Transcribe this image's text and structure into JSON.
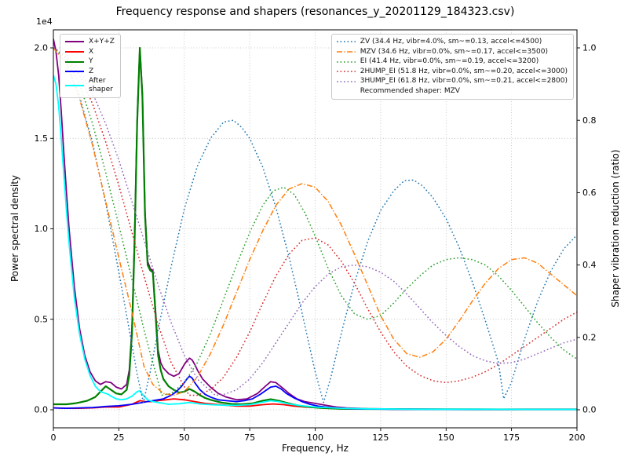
{
  "title": "Frequency response and shapers (resonances_y_20201129_184323.csv)",
  "axis_offset_label": "1e4",
  "x_axis": {
    "label": "Frequency, Hz",
    "ticks": [
      0,
      25,
      50,
      75,
      100,
      125,
      150,
      175,
      200
    ]
  },
  "y_left_axis": {
    "label": "Power spectral density",
    "ticks": [
      "0.0",
      "0.5",
      "1.0",
      "1.5",
      "2.0"
    ],
    "tick_values": [
      0,
      0.5,
      1.0,
      1.5,
      2.0
    ],
    "multiplier": "1e4"
  },
  "y_right_axis": {
    "label": "Shaper vibration reduction (ratio)",
    "ticks": [
      "0.0",
      "0.2",
      "0.4",
      "0.6",
      "0.8",
      "1.0"
    ],
    "tick_values": [
      0,
      0.2,
      0.4,
      0.6,
      0.8,
      1.0
    ]
  },
  "legend_psd": {
    "items": [
      {
        "id": "xyz",
        "label": "X+Y+Z",
        "color": "#800080",
        "linestyle": "solid",
        "width": 2
      },
      {
        "id": "x",
        "label": "X",
        "color": "#ff0000",
        "linestyle": "solid",
        "width": 2
      },
      {
        "id": "y",
        "label": "Y",
        "color": "#008000",
        "linestyle": "solid",
        "width": 2
      },
      {
        "id": "z",
        "label": "Z",
        "color": "#0000ff",
        "linestyle": "solid",
        "width": 2
      },
      {
        "id": "after",
        "label": "After\nshaper",
        "color": "#00ffff",
        "linestyle": "solid",
        "width": 2
      }
    ]
  },
  "legend_shapers": {
    "items": [
      {
        "id": "zv",
        "label": "ZV (34.4 Hz, vibr=4.0%, sm~=0.13, accel<=4500)",
        "color": "#1f77b4",
        "linestyle": "dotted",
        "width": 1.5
      },
      {
        "id": "mzv",
        "label": "MZV (34.6 Hz, vibr=0.0%, sm~=0.17, accel<=3500)",
        "color": "#ff7f0e",
        "linestyle": "dashdot",
        "width": 1.5
      },
      {
        "id": "ei",
        "label": "EI (41.4 Hz, vibr=0.0%, sm~=0.19, accel<=3200)",
        "color": "#2ca02c",
        "linestyle": "dotted",
        "width": 1.5
      },
      {
        "id": "2hump_ei",
        "label": "2HUMP_EI (51.8 Hz, vibr=0.0%, sm~=0.20, accel<=3000)",
        "color": "#d62728",
        "linestyle": "dotted",
        "width": 1.5
      },
      {
        "id": "3hump_ei",
        "label": "3HUMP_EI (61.8 Hz, vibr=0.0%, sm~=0.21, accel<=2800)",
        "color": "#9467bd",
        "linestyle": "dotted",
        "width": 1.5
      }
    ],
    "note": "Recommended shaper: MZV"
  },
  "chart_data": {
    "type": "line",
    "title": "Frequency response and shapers (resonances_y_20201129_184323.csv)",
    "xlabel": "Frequency, Hz",
    "ylabel_left": "Power spectral density (x1e4)",
    "ylabel_right": "Shaper vibration reduction (ratio)",
    "x_range": [
      0,
      200
    ],
    "y_left_range": [
      -0.1,
      2.1
    ],
    "y_right_range": [
      -0.05,
      1.05
    ],
    "grid": true,
    "recommended_shaper": "MZV",
    "series": [
      {
        "id": "xyz",
        "name": "X+Y+Z",
        "axis": "left",
        "color": "#800080",
        "linestyle": "solid",
        "width": 1.8,
        "x": [
          0,
          1,
          2,
          3,
          4,
          5,
          6,
          8,
          10,
          12,
          14,
          16,
          18,
          20,
          22,
          24,
          26,
          28,
          29,
          30,
          31,
          32,
          33,
          34,
          35,
          36,
          37,
          38,
          39,
          40,
          41,
          42,
          44,
          46,
          48,
          50,
          51,
          52,
          53,
          54,
          55,
          57,
          60,
          63,
          66,
          70,
          74,
          78,
          81,
          83,
          85,
          88,
          90,
          93,
          96,
          100,
          104,
          108,
          112,
          116,
          120,
          130,
          140,
          160,
          180,
          200
        ],
        "y": [
          2.05,
          1.98,
          1.85,
          1.65,
          1.42,
          1.2,
          1.0,
          0.68,
          0.45,
          0.3,
          0.21,
          0.16,
          0.14,
          0.155,
          0.15,
          0.125,
          0.115,
          0.14,
          0.22,
          0.45,
          0.95,
          1.6,
          2.0,
          1.75,
          1.1,
          0.82,
          0.78,
          0.77,
          0.55,
          0.33,
          0.26,
          0.23,
          0.2,
          0.185,
          0.2,
          0.25,
          0.27,
          0.285,
          0.275,
          0.25,
          0.22,
          0.17,
          0.125,
          0.09,
          0.07,
          0.055,
          0.06,
          0.09,
          0.13,
          0.155,
          0.15,
          0.115,
          0.09,
          0.06,
          0.045,
          0.035,
          0.025,
          0.015,
          0.01,
          0.008,
          0.006,
          0.004,
          0.003,
          0.003,
          0.002,
          0.002
        ]
      },
      {
        "id": "x",
        "name": "X",
        "axis": "left",
        "color": "#ff0000",
        "linestyle": "solid",
        "width": 1.8,
        "x": [
          0,
          5,
          10,
          15,
          20,
          25,
          30,
          33,
          35,
          38,
          40,
          43,
          46,
          50,
          54,
          58,
          62,
          66,
          70,
          75,
          80,
          84,
          88,
          92,
          96,
          100,
          110,
          120,
          140,
          160,
          180,
          200
        ],
        "y": [
          0.01,
          0.008,
          0.008,
          0.01,
          0.015,
          0.015,
          0.03,
          0.05,
          0.045,
          0.045,
          0.05,
          0.055,
          0.06,
          0.055,
          0.045,
          0.035,
          0.03,
          0.025,
          0.02,
          0.02,
          0.028,
          0.032,
          0.028,
          0.02,
          0.015,
          0.012,
          0.006,
          0.004,
          0.003,
          0.002,
          0.002,
          0.002
        ]
      },
      {
        "id": "y",
        "name": "Y",
        "axis": "left",
        "color": "#008000",
        "linestyle": "solid",
        "width": 2.2,
        "x": [
          0,
          2,
          5,
          8,
          10,
          13,
          16,
          18,
          20,
          22,
          24,
          26,
          28,
          29,
          30,
          31,
          32,
          33,
          34,
          35,
          36,
          37,
          38,
          39,
          40,
          41,
          42,
          44,
          46,
          48,
          50,
          52,
          54,
          56,
          58,
          60,
          64,
          68,
          72,
          76,
          80,
          83,
          86,
          90,
          94,
          98,
          102,
          106,
          110,
          120,
          140,
          160,
          180,
          200
        ],
        "y": [
          0.03,
          0.03,
          0.03,
          0.035,
          0.04,
          0.05,
          0.07,
          0.1,
          0.13,
          0.11,
          0.09,
          0.085,
          0.11,
          0.19,
          0.42,
          0.92,
          1.58,
          2.0,
          1.73,
          1.08,
          0.8,
          0.77,
          0.76,
          0.53,
          0.3,
          0.22,
          0.17,
          0.13,
          0.11,
          0.095,
          0.1,
          0.115,
          0.1,
          0.08,
          0.065,
          0.055,
          0.04,
          0.032,
          0.03,
          0.035,
          0.05,
          0.058,
          0.05,
          0.035,
          0.022,
          0.015,
          0.01,
          0.007,
          0.005,
          0.004,
          0.003,
          0.002,
          0.002,
          0.002
        ]
      },
      {
        "id": "z",
        "name": "Z",
        "axis": "left",
        "color": "#0000ff",
        "linestyle": "solid",
        "width": 1.8,
        "x": [
          0,
          5,
          10,
          15,
          20,
          25,
          30,
          34,
          38,
          42,
          45,
          47,
          49,
          50,
          51,
          52,
          53,
          54,
          56,
          58,
          60,
          63,
          66,
          70,
          73,
          76,
          79,
          81,
          83,
          85,
          87,
          89,
          92,
          95,
          98,
          101,
          104,
          108,
          112,
          116,
          120,
          130,
          140,
          160,
          180,
          200
        ],
        "y": [
          0.01,
          0.008,
          0.01,
          0.012,
          0.018,
          0.022,
          0.03,
          0.04,
          0.05,
          0.06,
          0.08,
          0.1,
          0.13,
          0.15,
          0.17,
          0.185,
          0.175,
          0.15,
          0.11,
          0.085,
          0.07,
          0.055,
          0.05,
          0.045,
          0.05,
          0.06,
          0.085,
          0.105,
          0.125,
          0.13,
          0.115,
          0.09,
          0.065,
          0.045,
          0.03,
          0.02,
          0.015,
          0.01,
          0.007,
          0.005,
          0.004,
          0.003,
          0.003,
          0.002,
          0.002,
          0.002
        ]
      },
      {
        "id": "after",
        "name": "After shaper",
        "axis": "left",
        "color": "#00ffff",
        "linestyle": "solid",
        "width": 1.8,
        "x": [
          0,
          1,
          2,
          3,
          4,
          5,
          6,
          8,
          10,
          12,
          14,
          16,
          18,
          19,
          20,
          21,
          22,
          24,
          26,
          28,
          30,
          32,
          33,
          34,
          36,
          38,
          40,
          44,
          48,
          52,
          56,
          60,
          65,
          70,
          75,
          80,
          83,
          86,
          90,
          95,
          100,
          110,
          120,
          140,
          160,
          180,
          200
        ],
        "y": [
          1.85,
          1.8,
          1.68,
          1.5,
          1.3,
          1.1,
          0.92,
          0.62,
          0.42,
          0.28,
          0.19,
          0.13,
          0.1,
          0.095,
          0.09,
          0.085,
          0.075,
          0.06,
          0.055,
          0.06,
          0.075,
          0.1,
          0.105,
          0.085,
          0.055,
          0.045,
          0.04,
          0.03,
          0.033,
          0.04,
          0.032,
          0.028,
          0.025,
          0.024,
          0.028,
          0.042,
          0.05,
          0.045,
          0.032,
          0.022,
          0.015,
          0.008,
          0.005,
          0.003,
          0.003,
          0.002,
          0.002
        ]
      },
      {
        "id": "zv",
        "name": "ZV",
        "axis": "right",
        "color": "#1f77b4",
        "linestyle": "dotted",
        "width": 1.5,
        "x": [
          0,
          5,
          10,
          15,
          20,
          25,
          30,
          32,
          34.4,
          37,
          40,
          45,
          50,
          55,
          60,
          65,
          68.8,
          72,
          75,
          80,
          85,
          90,
          95,
          100,
          103.2,
          106,
          110,
          115,
          120,
          125,
          130,
          134,
          137.6,
          141,
          145,
          150,
          155,
          160,
          165,
          170,
          172,
          175,
          180,
          185,
          190,
          195,
          200
        ],
        "y": [
          1.0,
          0.958,
          0.867,
          0.737,
          0.571,
          0.38,
          0.18,
          0.098,
          0.02,
          0.105,
          0.221,
          0.396,
          0.555,
          0.673,
          0.75,
          0.795,
          0.8,
          0.78,
          0.75,
          0.67,
          0.559,
          0.422,
          0.267,
          0.105,
          0.02,
          0.09,
          0.212,
          0.35,
          0.464,
          0.551,
          0.605,
          0.633,
          0.635,
          0.619,
          0.586,
          0.528,
          0.449,
          0.354,
          0.246,
          0.131,
          0.03,
          0.076,
          0.196,
          0.3,
          0.383,
          0.445,
          0.483
        ]
      },
      {
        "id": "mzv",
        "name": "MZV",
        "axis": "right",
        "color": "#ff7f0e",
        "linestyle": "dashdot",
        "width": 1.5,
        "x": [
          0,
          5,
          10,
          15,
          20,
          25,
          30,
          34.6,
          38,
          42,
          46,
          50,
          55,
          60,
          65,
          70,
          75,
          80,
          85,
          90,
          95,
          100,
          105,
          110,
          115,
          120,
          125,
          130,
          135,
          140,
          145,
          150,
          155,
          160,
          165,
          170,
          175,
          180,
          185,
          190,
          195,
          200
        ],
        "y": [
          1.0,
          0.955,
          0.86,
          0.73,
          0.575,
          0.42,
          0.27,
          0.12,
          0.07,
          0.045,
          0.04,
          0.05,
          0.09,
          0.155,
          0.235,
          0.325,
          0.415,
          0.495,
          0.565,
          0.61,
          0.625,
          0.615,
          0.575,
          0.51,
          0.43,
          0.345,
          0.26,
          0.195,
          0.155,
          0.145,
          0.16,
          0.195,
          0.245,
          0.3,
          0.35,
          0.39,
          0.415,
          0.42,
          0.405,
          0.375,
          0.345,
          0.315
        ]
      },
      {
        "id": "ei",
        "name": "EI",
        "axis": "right",
        "color": "#2ca02c",
        "linestyle": "dotted",
        "width": 1.5,
        "x": [
          0,
          5,
          10,
          15,
          20,
          25,
          30,
          35,
          41.4,
          45,
          50,
          55,
          60,
          65,
          70,
          75,
          80,
          84,
          88,
          92,
          96,
          100,
          105,
          110,
          115,
          120,
          125,
          130,
          135,
          140,
          145,
          150,
          155,
          160,
          165,
          170,
          175,
          180,
          185,
          190,
          195,
          200
        ],
        "y": [
          1.0,
          0.97,
          0.9,
          0.79,
          0.655,
          0.51,
          0.36,
          0.21,
          0.04,
          0.045,
          0.075,
          0.13,
          0.21,
          0.305,
          0.4,
          0.49,
          0.565,
          0.605,
          0.615,
          0.595,
          0.545,
          0.48,
          0.39,
          0.315,
          0.265,
          0.25,
          0.26,
          0.295,
          0.335,
          0.37,
          0.4,
          0.415,
          0.42,
          0.415,
          0.4,
          0.37,
          0.33,
          0.285,
          0.24,
          0.2,
          0.165,
          0.14
        ]
      },
      {
        "id": "2hump_ei",
        "name": "2HUMP_EI",
        "axis": "right",
        "color": "#d62728",
        "linestyle": "dotted",
        "width": 1.5,
        "x": [
          0,
          5,
          10,
          15,
          20,
          25,
          30,
          35,
          40,
          45,
          51.8,
          55,
          60,
          65,
          70,
          75,
          80,
          85,
          90,
          95,
          100,
          105,
          110,
          115,
          120,
          125,
          130,
          135,
          140,
          145,
          150,
          155,
          160,
          165,
          170,
          175,
          180,
          185,
          190,
          195,
          200
        ],
        "y": [
          1.0,
          0.975,
          0.925,
          0.845,
          0.74,
          0.62,
          0.49,
          0.36,
          0.235,
          0.13,
          0.04,
          0.04,
          0.055,
          0.09,
          0.145,
          0.215,
          0.295,
          0.37,
          0.43,
          0.468,
          0.475,
          0.455,
          0.41,
          0.35,
          0.28,
          0.215,
          0.16,
          0.12,
          0.095,
          0.08,
          0.075,
          0.08,
          0.09,
          0.105,
          0.125,
          0.15,
          0.175,
          0.2,
          0.225,
          0.25,
          0.27
        ]
      },
      {
        "id": "3hump_ei",
        "name": "3HUMP_EI",
        "axis": "right",
        "color": "#9467bd",
        "linestyle": "dotted",
        "width": 1.5,
        "x": [
          0,
          5,
          10,
          15,
          20,
          25,
          30,
          35,
          40,
          45,
          50,
          55,
          61.8,
          65,
          70,
          75,
          80,
          85,
          90,
          95,
          100,
          105,
          110,
          115,
          120,
          125,
          130,
          135,
          140,
          145,
          150,
          155,
          160,
          165,
          170,
          175,
          180,
          185,
          190,
          195,
          200
        ],
        "y": [
          1.0,
          0.98,
          0.94,
          0.875,
          0.79,
          0.69,
          0.575,
          0.46,
          0.345,
          0.24,
          0.15,
          0.085,
          0.04,
          0.042,
          0.055,
          0.085,
          0.13,
          0.185,
          0.24,
          0.295,
          0.34,
          0.375,
          0.395,
          0.4,
          0.395,
          0.38,
          0.355,
          0.32,
          0.28,
          0.24,
          0.205,
          0.175,
          0.15,
          0.135,
          0.128,
          0.13,
          0.14,
          0.155,
          0.17,
          0.185,
          0.195
        ]
      }
    ]
  }
}
